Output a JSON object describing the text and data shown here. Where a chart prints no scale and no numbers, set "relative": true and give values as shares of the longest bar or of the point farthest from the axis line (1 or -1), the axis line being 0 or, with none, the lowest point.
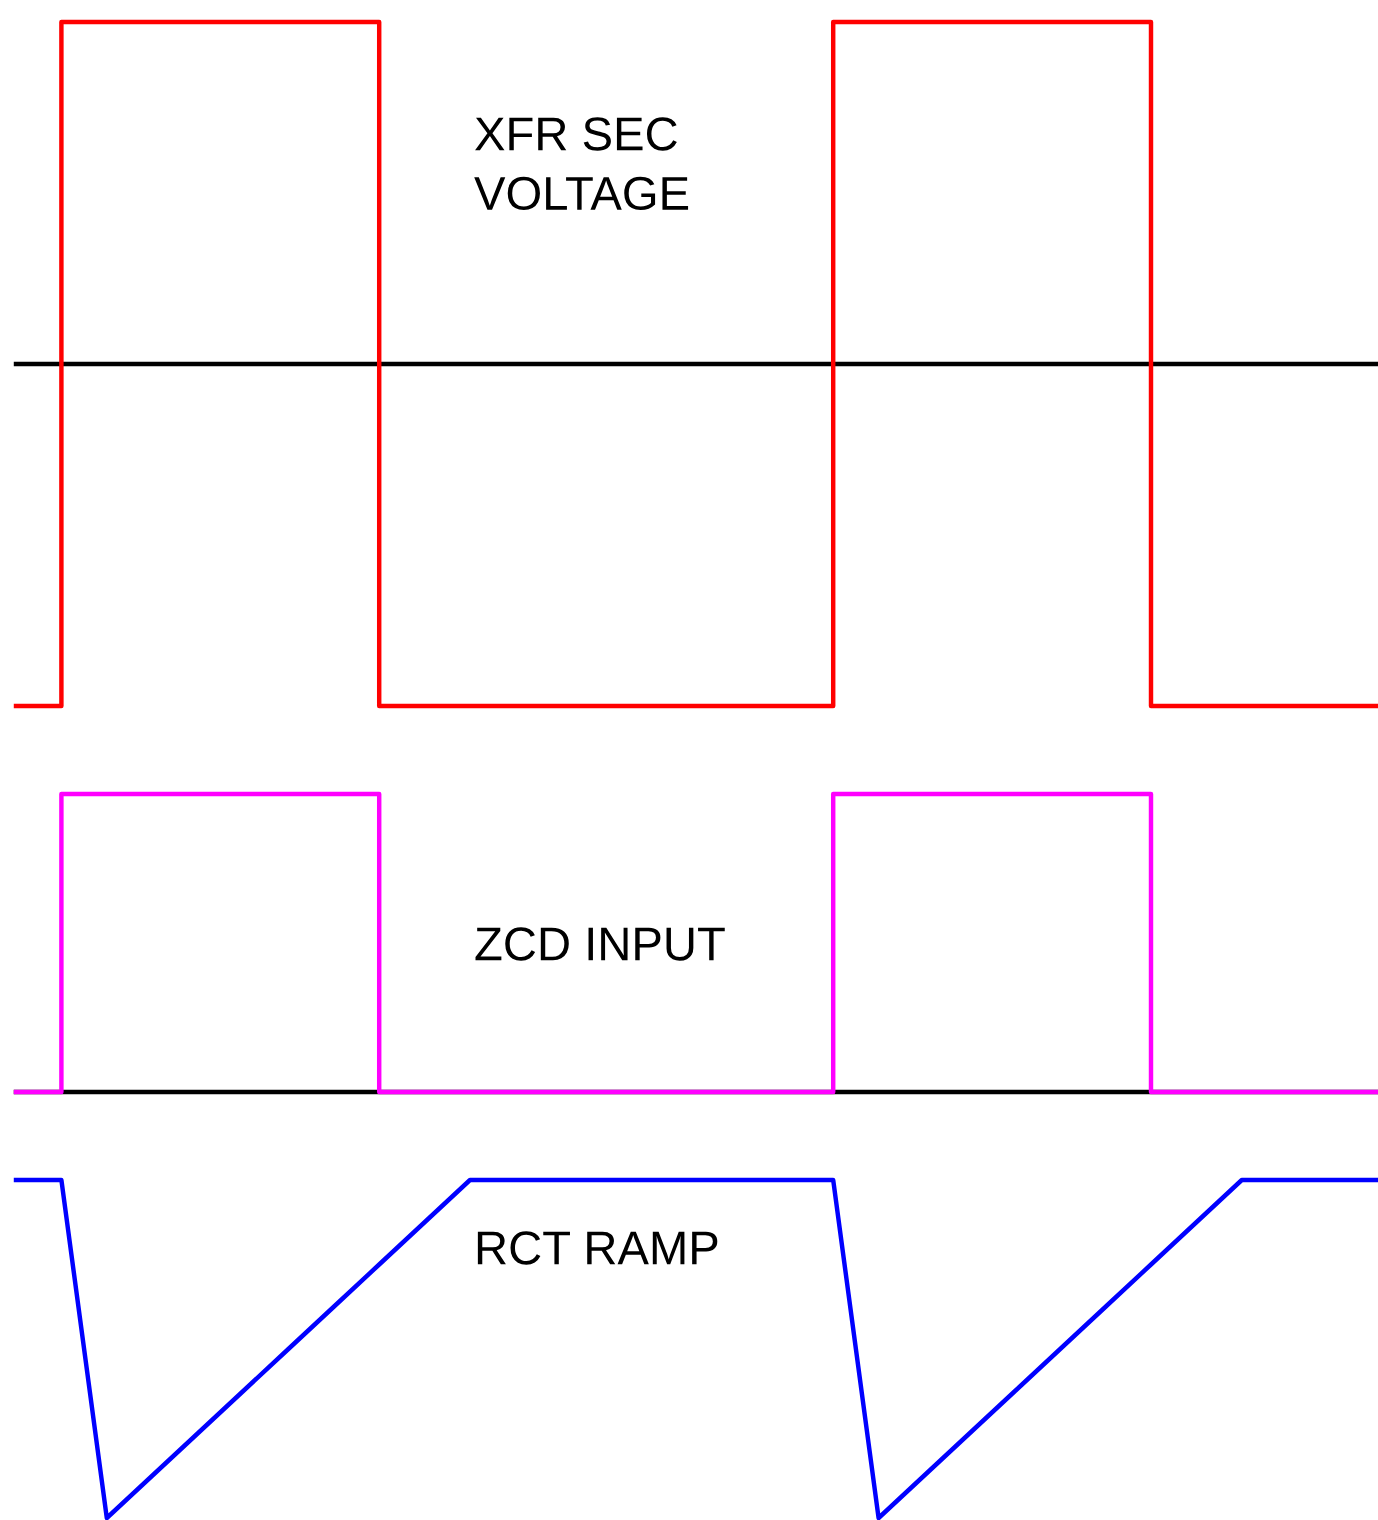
{
  "chart_data": [
    {
      "type": "step",
      "title": "XFR SEC\nVOLTAGE",
      "relative": true,
      "categories": [
        null,
        null,
        null,
        null,
        null,
        null,
        null,
        null,
        null,
        null,
        null,
        null,
        null,
        null,
        null,
        null,
        null,
        null,
        null,
        null,
        null,
        null,
        null,
        null,
        null,
        null,
        null,
        null,
        null,
        null,
        null
      ],
      "series": [
        {
          "color": "#ff0000",
          "values": [
            -1,
            1,
            1,
            1,
            1,
            1,
            1,
            1,
            -1,
            -1,
            -1,
            -1,
            -1,
            -1,
            -1,
            -1,
            -1,
            -1,
            1,
            1,
            1,
            1,
            1,
            1,
            1,
            -1,
            -1,
            -1,
            -1,
            -1,
            -1
          ]
        }
      ]
    },
    {
      "type": "step",
      "title": "ZCD INPUT",
      "relative": true,
      "categories": [
        null,
        null,
        null,
        null,
        null,
        null,
        null,
        null,
        null,
        null,
        null,
        null,
        null,
        null,
        null,
        null,
        null,
        null,
        null,
        null,
        null,
        null,
        null,
        null,
        null,
        null,
        null,
        null,
        null,
        null,
        null
      ],
      "series": [
        {
          "color": "#ff00ff",
          "values": [
            0,
            1,
            1,
            1,
            1,
            1,
            1,
            1,
            0,
            0,
            0,
            0,
            0,
            0,
            0,
            0,
            0,
            0,
            1,
            1,
            1,
            1,
            1,
            1,
            1,
            0,
            0,
            0,
            0,
            0,
            0
          ]
        }
      ]
    },
    {
      "type": "line",
      "title": "RCT RAMP",
      "relative": true,
      "categories": [
        null,
        null,
        null,
        null,
        null,
        null,
        null,
        null,
        null,
        null,
        null,
        null,
        null,
        null,
        null,
        null,
        null,
        null,
        null,
        null,
        null,
        null,
        null,
        null,
        null,
        null,
        null,
        null,
        null,
        null,
        null
      ],
      "series": [
        {
          "color": "#0000ff",
          "values": [
            1,
            1,
            0,
            0.125,
            0.25,
            0.375,
            0.5,
            0.625,
            0.75,
            0.875,
            1,
            1,
            1,
            1,
            1,
            1,
            1,
            1,
            1,
            0,
            0.125,
            0.25,
            0.375,
            0.5,
            0.625,
            0.75,
            0.875,
            1,
            1,
            1,
            1
          ]
        }
      ]
    }
  ]
}
